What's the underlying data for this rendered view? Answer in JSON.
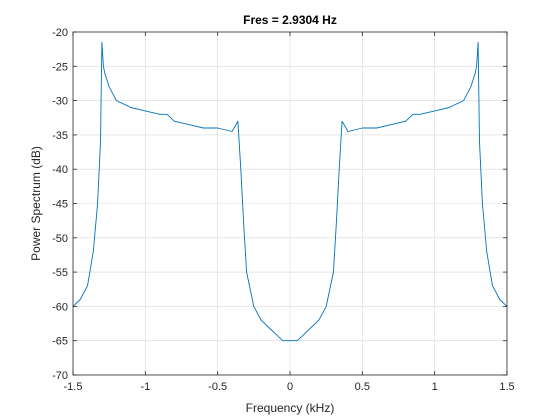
{
  "chart_data": {
    "type": "line",
    "title": "Fres = 2.9304 Hz",
    "xlabel": "Frequency (kHz)",
    "ylabel": "Power Spectrum (dB)",
    "xlim": [
      -1.5,
      1.5
    ],
    "ylim": [
      -70,
      -20
    ],
    "xticks": [
      -1.5,
      -1,
      -0.5,
      0,
      0.5,
      1,
      1.5
    ],
    "xtick_labels": [
      "-1.5",
      "-1",
      "-0.5",
      "0",
      "0.5",
      "1",
      "1.5"
    ],
    "yticks": [
      -20,
      -25,
      -30,
      -35,
      -40,
      -45,
      -50,
      -55,
      -60,
      -65,
      -70
    ],
    "ytick_labels": [
      "-20",
      "-25",
      "-30",
      "-35",
      "-40",
      "-45",
      "-50",
      "-55",
      "-60",
      "-65",
      "-70"
    ],
    "grid": true,
    "box": true,
    "legend": "none",
    "series": [
      {
        "color": "#0072BD",
        "x": [
          -1.5,
          -1.45,
          -1.4,
          -1.36,
          -1.33,
          -1.31,
          -1.3,
          -1.29,
          -1.28,
          -1.25,
          -1.2,
          -1.1,
          -1.0,
          -0.9,
          -0.85,
          -0.8,
          -0.7,
          -0.6,
          -0.5,
          -0.4,
          -0.36,
          -0.34,
          -0.32,
          -0.3,
          -0.25,
          -0.2,
          -0.15,
          -0.1,
          -0.05,
          0.0,
          0.05,
          0.1,
          0.15,
          0.2,
          0.25,
          0.3,
          0.32,
          0.34,
          0.36,
          0.4,
          0.5,
          0.6,
          0.7,
          0.8,
          0.85,
          0.9,
          1.0,
          1.1,
          1.2,
          1.25,
          1.28,
          1.29,
          1.3,
          1.31,
          1.33,
          1.36,
          1.4,
          1.45,
          1.5
        ],
        "y": [
          -60,
          -59,
          -57,
          -52,
          -45,
          -36,
          -21.5,
          -25,
          -26,
          -28,
          -30,
          -31,
          -31.5,
          -32,
          -32,
          -33,
          -33.5,
          -34,
          -34,
          -34.5,
          -33,
          -40,
          -48,
          -55,
          -60,
          -62,
          -63,
          -64,
          -65,
          -65,
          -65,
          -64,
          -63,
          -62,
          -60,
          -55,
          -48,
          -40,
          -33,
          -34.5,
          -34,
          -34,
          -33.5,
          -33,
          -32,
          -32,
          -31.5,
          -31,
          -30,
          -28,
          -26,
          -25,
          -21.5,
          -36,
          -45,
          -52,
          -57,
          -59,
          -60
        ]
      }
    ]
  }
}
